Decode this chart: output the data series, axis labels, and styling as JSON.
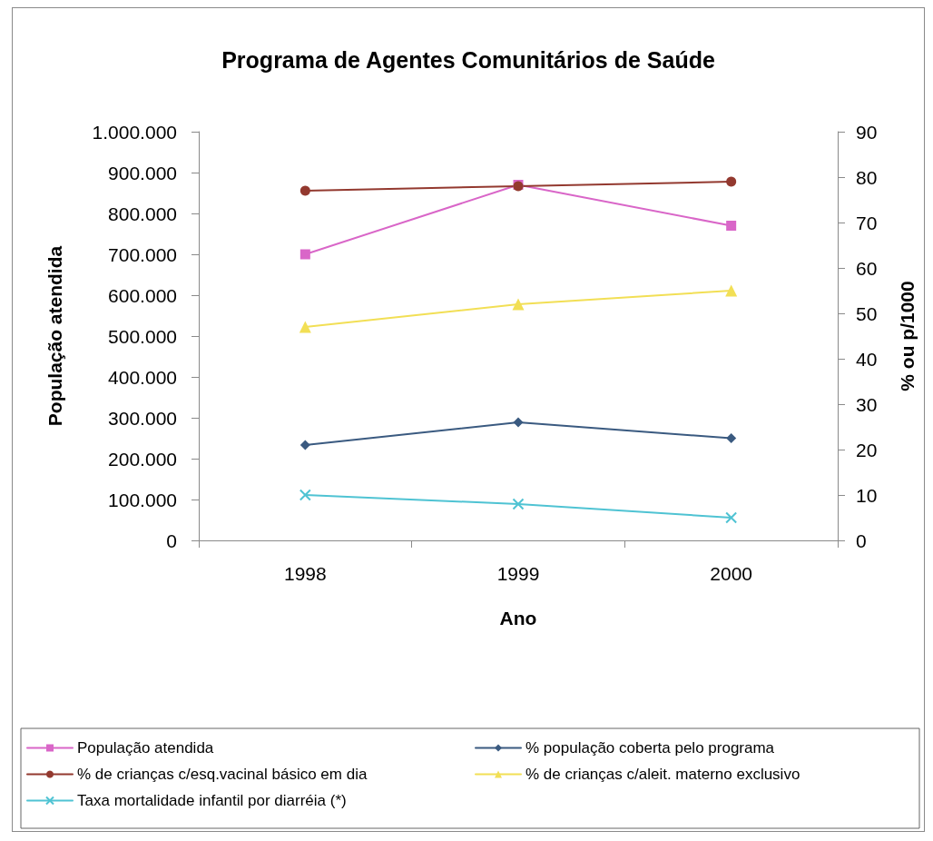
{
  "chart_data": {
    "type": "line",
    "title": "Programa de Agentes Comunitários de Saúde",
    "xlabel": "Ano",
    "ylabel": "População atendida",
    "y2label": "% ou p/1000",
    "categories": [
      "1998",
      "1999",
      "2000"
    ],
    "series": [
      {
        "name": "População atendida",
        "color": "#d966c8",
        "marker": "square",
        "values": [
          700000,
          870000,
          770000
        ]
      },
      {
        "name": "% população coberta pelo programa",
        "color": "#3a5a80",
        "marker": "diamond",
        "axis": "y2",
        "values": [
          21,
          26,
          22.5
        ]
      },
      {
        "name": "% de crianças c/esq.vacinal básico em dia",
        "color": "#93392f",
        "marker": "circle",
        "axis": "y2",
        "values": [
          77,
          78,
          79
        ]
      },
      {
        "name": "% de crianças c/aleit. materno exclusivo",
        "color": "#f2df55",
        "marker": "triangle",
        "axis": "y2",
        "values": [
          47,
          52,
          55
        ]
      },
      {
        "name": "Taxa mortalidade infantil por diarréia (*)",
        "color": "#4fc3d3",
        "marker": "cross",
        "axis": "y2",
        "values": [
          10,
          8,
          5
        ]
      }
    ],
    "ylim": [
      0,
      1000000
    ],
    "yticks": [
      0,
      {
        "value": 100000,
        "label": "100.000"
      },
      {
        "value": 200000,
        "label": "200.000"
      },
      {
        "value": 300000,
        "label": "300.000"
      },
      {
        "value": 400000,
        "label": "400.000"
      },
      {
        "value": 500000,
        "label": "500.000"
      },
      {
        "value": 600000,
        "label": "600.000"
      },
      {
        "value": 700000,
        "label": "700.000"
      },
      {
        "value": 800000,
        "label": "800.000"
      },
      {
        "value": 900000,
        "label": "900.000"
      },
      {
        "value": 1000000,
        "label": "1.000.000"
      }
    ],
    "y2lim": [
      0,
      90
    ],
    "y2ticks": [
      0,
      10,
      20,
      30,
      40,
      50,
      60,
      70,
      80,
      90
    ],
    "legend": "bottom"
  }
}
